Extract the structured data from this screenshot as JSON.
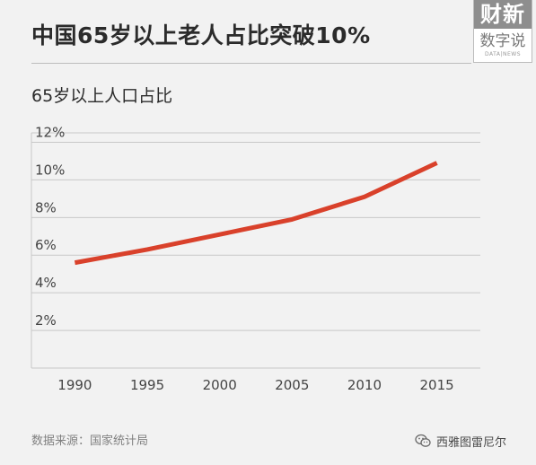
{
  "header": {
    "title": "中国65岁以上老人占比突破10%",
    "logo_top": "财新",
    "logo_mid": "数字说",
    "logo_bottom": "DATA|NEWS"
  },
  "subtitle": "65岁以上人口占比",
  "chart_data": {
    "type": "line",
    "title": "中国65岁以上老人占比突破10%",
    "subtitle": "65岁以上人口占比",
    "x": [
      1990,
      1995,
      2000,
      2005,
      2010,
      2015
    ],
    "x_tick_labels": [
      "1990",
      "1995",
      "2000",
      "2005",
      "2010",
      "2015"
    ],
    "y_ticks": [
      2,
      4,
      6,
      8,
      10,
      12
    ],
    "y_tick_labels": [
      "2%",
      "4%",
      "6%",
      "8%",
      "10%",
      "12%"
    ],
    "ylim": [
      0,
      12.5
    ],
    "xlim": [
      1987,
      2018
    ],
    "grid": true,
    "series": [
      {
        "values": [
          5.6,
          6.3,
          7.1,
          7.9,
          9.1,
          10.9
        ],
        "color": "#d9412b"
      }
    ]
  },
  "footer": {
    "source": "数据来源：国家统计局",
    "watermark": "西雅图雷尼尔"
  },
  "colors": {
    "background": "#f2f2f2",
    "line": "#d9412b",
    "grid": "#c8c8c8"
  }
}
